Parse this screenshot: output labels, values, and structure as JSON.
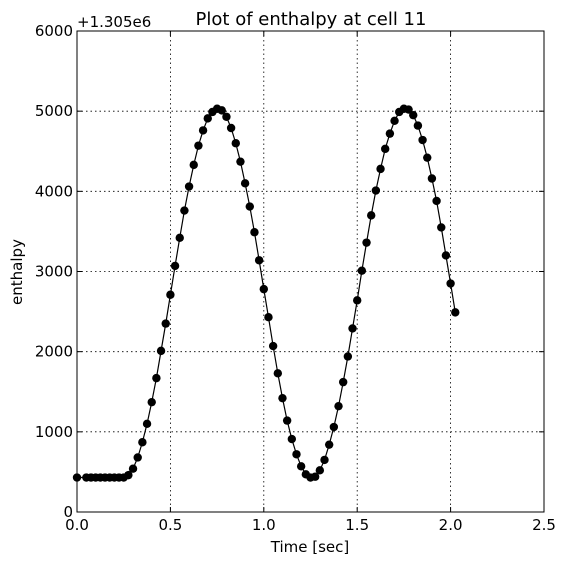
{
  "chart_data": {
    "type": "line",
    "title": "Plot of enthalpy at cell 11",
    "xlabel": "Time [sec]",
    "ylabel": "enthalpy",
    "offset_label": "+1.305e6",
    "xlim": [
      0.0,
      2.5
    ],
    "ylim": [
      0,
      6000
    ],
    "xticks": [
      "0.0",
      "0.5",
      "1.0",
      "1.5",
      "2.0",
      "2.5"
    ],
    "yticks": [
      "0",
      "1000",
      "2000",
      "3000",
      "4000",
      "5000",
      "6000"
    ],
    "grid": true,
    "series": [
      {
        "color": "#000000",
        "marker": "circle",
        "x": [
          0.0,
          0.05,
          0.075,
          0.1,
          0.125,
          0.15,
          0.175,
          0.2,
          0.225,
          0.25,
          0.275,
          0.3,
          0.325,
          0.35,
          0.375,
          0.4,
          0.425,
          0.45,
          0.475,
          0.5,
          0.525,
          0.55,
          0.575,
          0.6,
          0.625,
          0.65,
          0.675,
          0.7,
          0.725,
          0.75,
          0.775,
          0.8,
          0.825,
          0.85,
          0.875,
          0.9,
          0.925,
          0.95,
          0.975,
          1.0,
          1.025,
          1.05,
          1.075,
          1.1,
          1.125,
          1.15,
          1.175,
          1.2,
          1.225,
          1.25,
          1.275,
          1.3,
          1.325,
          1.35,
          1.375,
          1.4,
          1.425,
          1.45,
          1.475,
          1.5,
          1.525,
          1.55,
          1.575,
          1.6,
          1.625,
          1.65,
          1.675,
          1.7,
          1.725,
          1.75,
          1.775,
          1.8,
          1.825,
          1.85,
          1.875,
          1.9,
          1.925,
          1.95,
          1.975,
          2.0,
          2.025
        ],
        "y": [
          430,
          430,
          430,
          430,
          430,
          430,
          430,
          430,
          430,
          430,
          460,
          540,
          680,
          870,
          1100,
          1370,
          1670,
          2010,
          2350,
          2710,
          3070,
          3420,
          3760,
          4060,
          4330,
          4570,
          4760,
          4910,
          4990,
          5030,
          5010,
          4930,
          4790,
          4600,
          4370,
          4100,
          3810,
          3490,
          3140,
          2780,
          2430,
          2070,
          1730,
          1420,
          1140,
          910,
          720,
          570,
          470,
          430,
          440,
          520,
          650,
          840,
          1060,
          1320,
          1620,
          1940,
          2290,
          2640,
          3010,
          3360,
          3700,
          4010,
          4280,
          4530,
          4720,
          4880,
          4990,
          5030,
          5020,
          4950,
          4820,
          4640,
          4420,
          4160,
          3880,
          3550,
          3200,
          2850,
          2490
        ]
      }
    ]
  }
}
